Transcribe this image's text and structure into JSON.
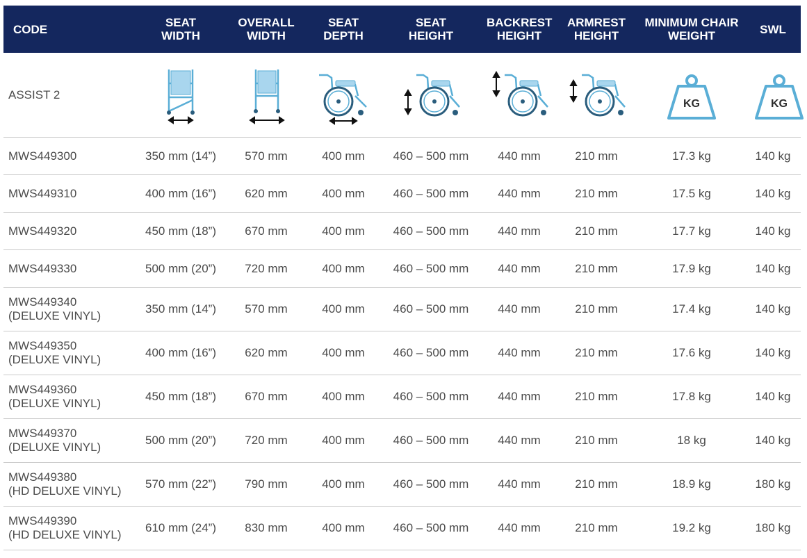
{
  "headers": [
    {
      "lines": [
        "CODE"
      ]
    },
    {
      "lines": [
        "SEAT",
        "WIDTH"
      ]
    },
    {
      "lines": [
        "OVERALL",
        "WIDTH"
      ]
    },
    {
      "lines": [
        "SEAT",
        "DEPTH"
      ]
    },
    {
      "lines": [
        "SEAT",
        "HEIGHT"
      ]
    },
    {
      "lines": [
        "BACKREST",
        "HEIGHT"
      ]
    },
    {
      "lines": [
        "ARMREST",
        "HEIGHT"
      ]
    },
    {
      "lines": [
        "MINIMUM CHAIR",
        "WEIGHT"
      ]
    },
    {
      "lines": [
        "SWL"
      ]
    }
  ],
  "icon_row": {
    "label": "ASSIST 2",
    "icons": [
      "seat-width-diagram-icon",
      "overall-width-diagram-icon",
      "seat-depth-diagram-icon",
      "seat-height-diagram-icon",
      "backrest-height-diagram-icon",
      "armrest-height-diagram-icon",
      "weight-kg-icon",
      "weight-kg-icon"
    ],
    "kg_label": "KG"
  },
  "colors": {
    "header_bg": "#14275e",
    "header_text": "#ffffff",
    "icon_blue": "#5aaed6",
    "row_divider": "#c9c9c9"
  },
  "rows": [
    {
      "code": [
        "MWS449300"
      ],
      "seat_width": "350 mm (14”)",
      "overall_width": "570 mm",
      "seat_depth": "400 mm",
      "seat_height": "460 – 500 mm",
      "backrest_height": "440 mm",
      "armrest_height": "210 mm",
      "weight": "17.3 kg",
      "swl": "140 kg"
    },
    {
      "code": [
        "MWS449310"
      ],
      "seat_width": "400 mm (16”)",
      "overall_width": "620 mm",
      "seat_depth": "400 mm",
      "seat_height": "460 – 500 mm",
      "backrest_height": "440 mm",
      "armrest_height": "210 mm",
      "weight": "17.5 kg",
      "swl": "140 kg"
    },
    {
      "code": [
        "MWS449320"
      ],
      "seat_width": "450 mm (18”)",
      "overall_width": "670 mm",
      "seat_depth": "400 mm",
      "seat_height": "460 – 500 mm",
      "backrest_height": "440 mm",
      "armrest_height": "210 mm",
      "weight": "17.7 kg",
      "swl": "140 kg"
    },
    {
      "code": [
        "MWS449330"
      ],
      "seat_width": "500 mm (20”)",
      "overall_width": "720 mm",
      "seat_depth": "400 mm",
      "seat_height": "460 – 500 mm",
      "backrest_height": "440 mm",
      "armrest_height": "210 mm",
      "weight": "17.9 kg",
      "swl": "140 kg"
    },
    {
      "code": [
        "MWS449340",
        "(DELUXE VINYL)"
      ],
      "seat_width": "350 mm (14”)",
      "overall_width": "570 mm",
      "seat_depth": "400 mm",
      "seat_height": "460 – 500 mm",
      "backrest_height": "440 mm",
      "armrest_height": "210 mm",
      "weight": "17.4 kg",
      "swl": "140 kg"
    },
    {
      "code": [
        "MWS449350",
        "(DELUXE VINYL)"
      ],
      "seat_width": "400 mm (16”)",
      "overall_width": "620 mm",
      "seat_depth": "400 mm",
      "seat_height": "460 – 500 mm",
      "backrest_height": "440 mm",
      "armrest_height": "210 mm",
      "weight": "17.6 kg",
      "swl": "140 kg"
    },
    {
      "code": [
        "MWS449360",
        "(DELUXE VINYL)"
      ],
      "seat_width": "450 mm (18”)",
      "overall_width": "670 mm",
      "seat_depth": "400 mm",
      "seat_height": "460 – 500 mm",
      "backrest_height": "440 mm",
      "armrest_height": "210 mm",
      "weight": "17.8 kg",
      "swl": "140 kg"
    },
    {
      "code": [
        "MWS449370",
        "(DELUXE VINYL)"
      ],
      "seat_width": "500 mm (20”)",
      "overall_width": "720 mm",
      "seat_depth": "400 mm",
      "seat_height": "460 – 500 mm",
      "backrest_height": "440 mm",
      "armrest_height": "210 mm",
      "weight": "18 kg",
      "swl": "140 kg"
    },
    {
      "code": [
        "MWS449380",
        "(HD DELUXE VINYL)"
      ],
      "seat_width": "570 mm (22”)",
      "overall_width": "790 mm",
      "seat_depth": "400 mm",
      "seat_height": "460 – 500 mm",
      "backrest_height": "440 mm",
      "armrest_height": "210 mm",
      "weight": "18.9 kg",
      "swl": "180 kg"
    },
    {
      "code": [
        "MWS449390",
        "(HD DELUXE VINYL)"
      ],
      "seat_width": "610 mm (24”)",
      "overall_width": "830 mm",
      "seat_depth": "400 mm",
      "seat_height": "460 – 500 mm",
      "backrest_height": "440 mm",
      "armrest_height": "210 mm",
      "weight": "19.2 kg",
      "swl": "180 kg"
    }
  ]
}
